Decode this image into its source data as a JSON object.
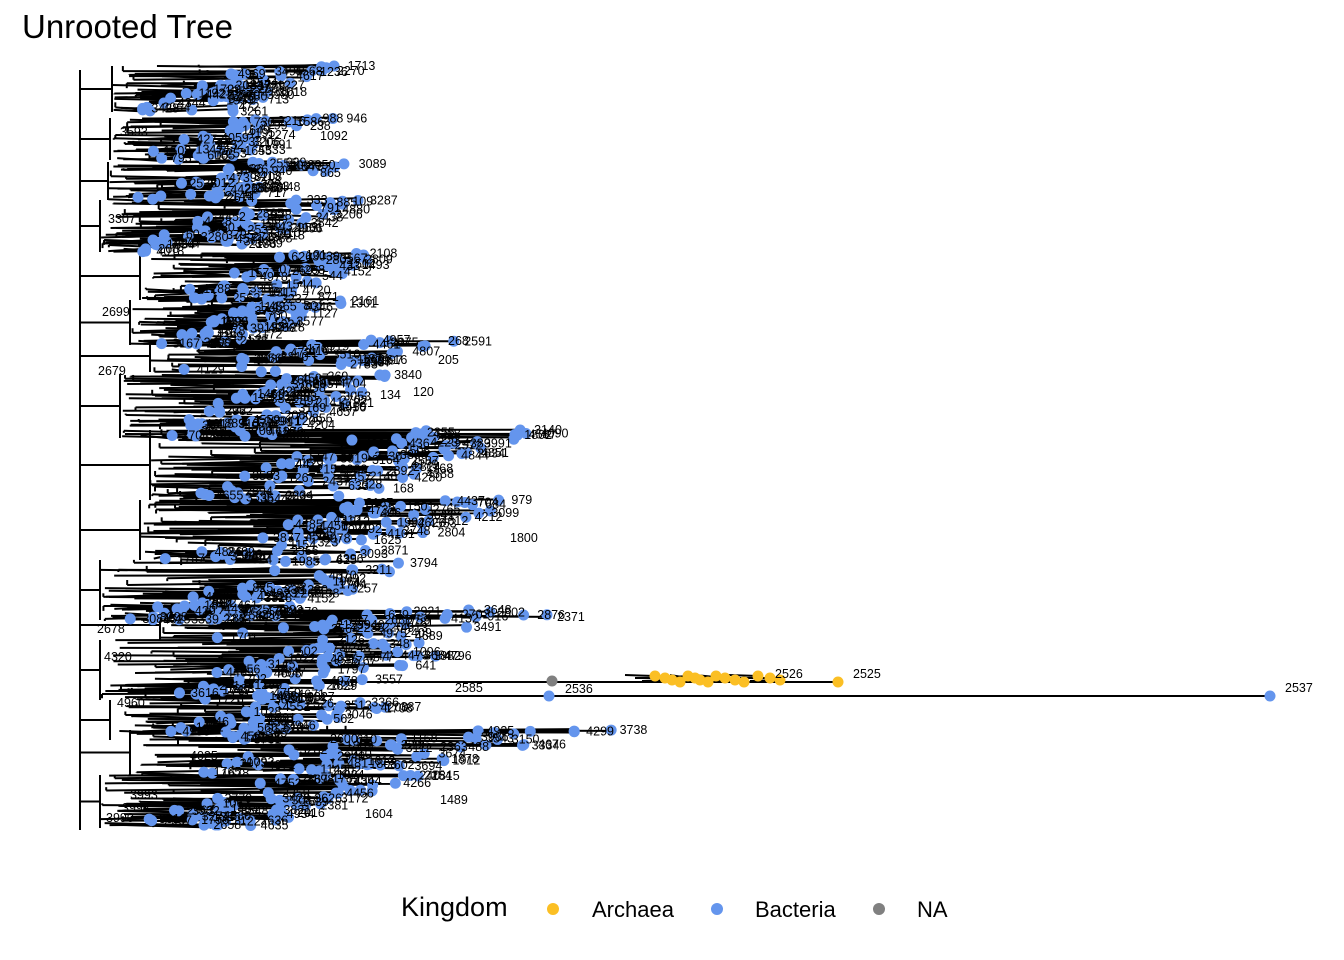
{
  "chart_data": {
    "type": "phylogenetic-tree",
    "title": "Unrooted Tree",
    "legend": {
      "title": "Kingdom",
      "placement": "bottom",
      "entries": [
        {
          "name": "Archaea",
          "color": "#FBBF24"
        },
        {
          "name": "Bacteria",
          "color": "#6495ED"
        },
        {
          "name": "NA",
          "color": "#808080"
        }
      ]
    },
    "grid": false,
    "visible_labels": {
      "tips": [
        "1236",
        "1092",
        "865",
        "791",
        "670",
        "544",
        "871",
        "268",
        "205",
        "160",
        "134",
        "120",
        "2371",
        "1800",
        "2525",
        "2526",
        "2537",
        "2536",
        "2585",
        "2600",
        "2363",
        "1489",
        "1604"
      ],
      "internal_nodes": [
        "3593",
        "3307",
        "2699",
        "2679",
        "2678",
        "4320",
        "4960",
        "3993",
        "3992",
        "3990",
        "4025"
      ]
    }
  }
}
